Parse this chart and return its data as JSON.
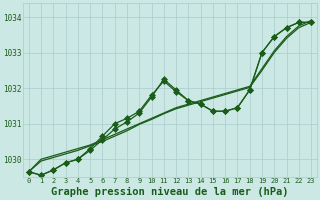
{
  "title": "Graphe pression niveau de la mer (hPa)",
  "x_hours": [
    0,
    1,
    2,
    3,
    4,
    5,
    6,
    7,
    8,
    9,
    10,
    11,
    12,
    13,
    14,
    15,
    16,
    17,
    18,
    19,
    20,
    21,
    22,
    23
  ],
  "line_wavy1": [
    1029.65,
    1029.55,
    1029.7,
    1029.9,
    1030.0,
    1030.25,
    1030.55,
    1030.85,
    1031.05,
    1031.3,
    1031.75,
    1032.25,
    1031.95,
    1031.65,
    1031.55,
    1031.35,
    1031.35,
    1031.45,
    1031.95,
    1033.0,
    1033.45,
    1033.7,
    1033.85,
    1033.85
  ],
  "line_wavy2": [
    1029.65,
    1029.55,
    1029.7,
    1029.9,
    1030.0,
    1030.3,
    1030.65,
    1031.0,
    1031.15,
    1031.35,
    1031.8,
    1032.2,
    1031.9,
    1031.65,
    1031.55,
    1031.35,
    1031.35,
    1031.45,
    1031.95,
    1033.0,
    1033.45,
    1033.7,
    1033.85,
    1033.85
  ],
  "line_straight1": [
    1029.65,
    1030.0,
    1030.1,
    1030.2,
    1030.3,
    1030.4,
    1030.55,
    1030.7,
    1030.85,
    1031.0,
    1031.15,
    1031.3,
    1031.45,
    1031.55,
    1031.65,
    1031.75,
    1031.85,
    1031.95,
    1032.05,
    1032.55,
    1033.05,
    1033.45,
    1033.75,
    1033.9
  ],
  "line_straight2": [
    1029.65,
    1029.95,
    1030.05,
    1030.15,
    1030.25,
    1030.38,
    1030.5,
    1030.65,
    1030.8,
    1030.98,
    1031.12,
    1031.28,
    1031.42,
    1031.52,
    1031.62,
    1031.72,
    1031.82,
    1031.92,
    1032.02,
    1032.5,
    1033.0,
    1033.4,
    1033.7,
    1033.85
  ],
  "line_color": "#1a5c1a",
  "bg_color": "#cce8e4",
  "grid_color": "#aacccc",
  "ylim": [
    1029.5,
    1034.4
  ],
  "yticks": [
    1030,
    1031,
    1032,
    1033,
    1034
  ],
  "xticks": [
    0,
    1,
    2,
    3,
    4,
    5,
    6,
    7,
    8,
    9,
    10,
    11,
    12,
    13,
    14,
    15,
    16,
    17,
    18,
    19,
    20,
    21,
    22,
    23
  ],
  "title_fontsize": 7.5,
  "markersize": 3.0,
  "linewidth": 0.9
}
